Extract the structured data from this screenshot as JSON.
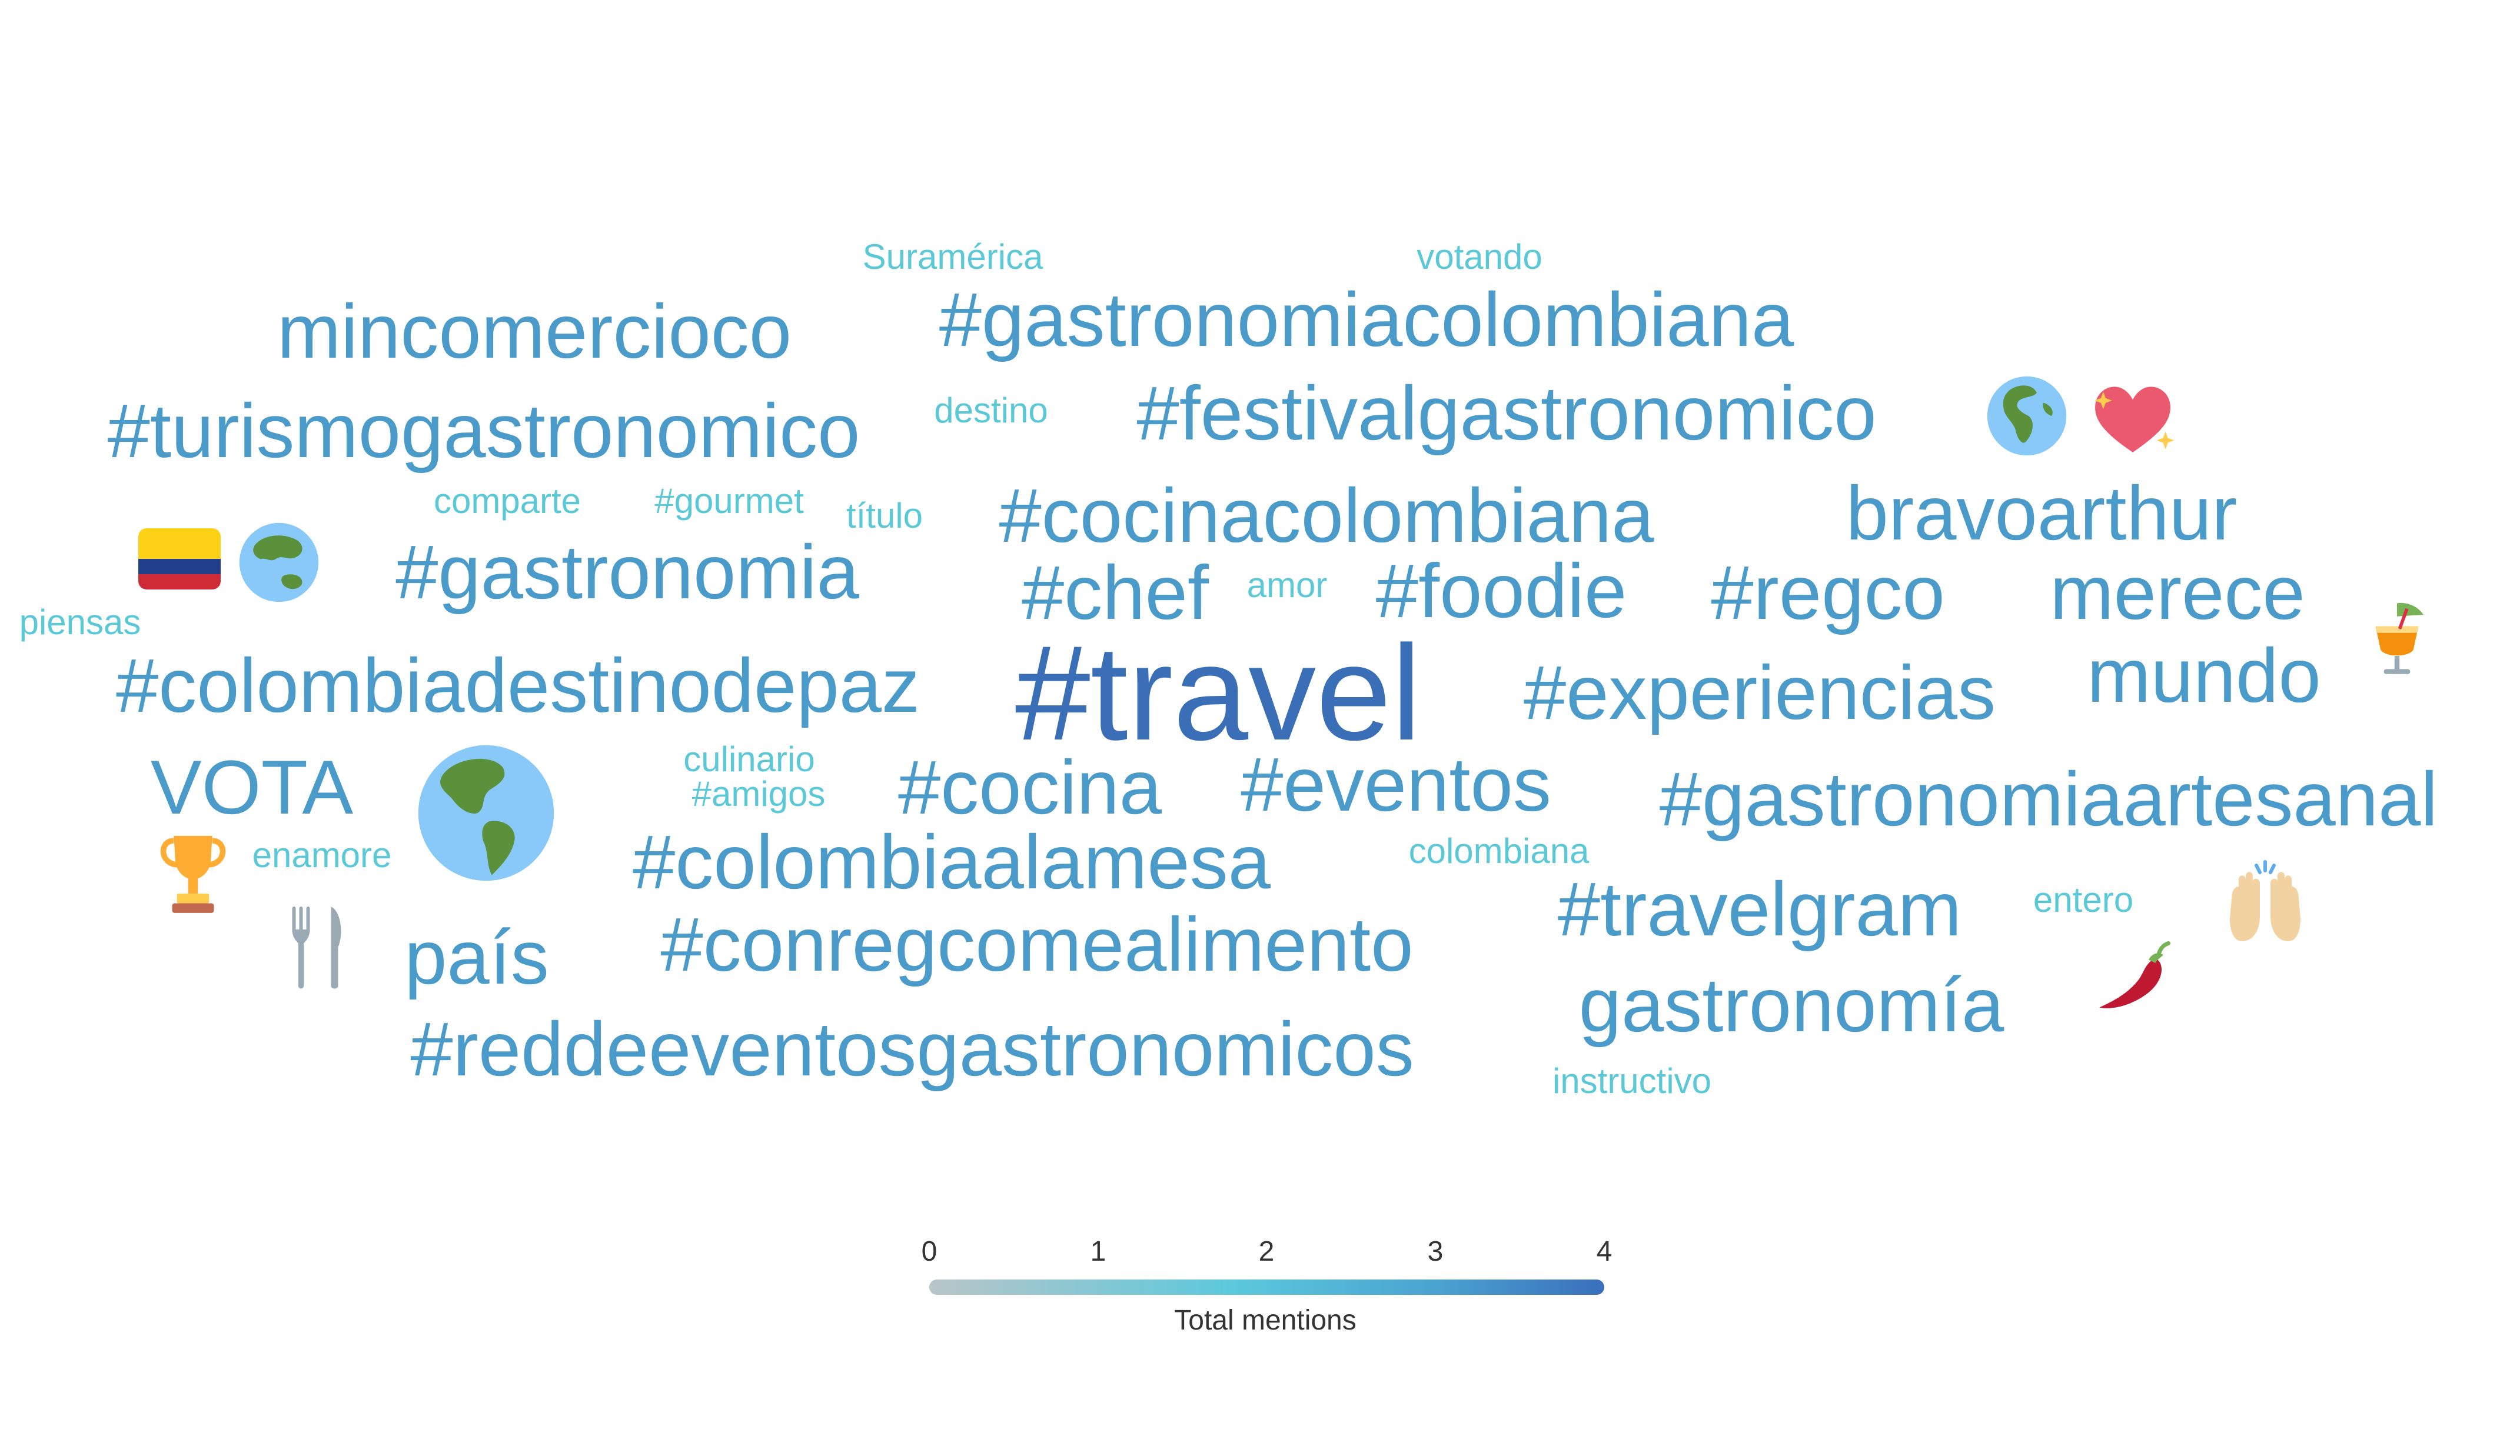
{
  "chart_data": {
    "type": "wordcloud",
    "words": [
      {
        "text": "#travel",
        "value": 4
      },
      {
        "text": "#gastronomiacolombiana",
        "value": 3
      },
      {
        "text": "mincomercioco",
        "value": 3
      },
      {
        "text": "#turismogastronomico",
        "value": 3
      },
      {
        "text": "#festivalgastronomico",
        "value": 3
      },
      {
        "text": "#cocinacolombiana",
        "value": 3
      },
      {
        "text": "bravoarthur",
        "value": 3
      },
      {
        "text": "#gastronomia",
        "value": 3
      },
      {
        "text": "#chef",
        "value": 3
      },
      {
        "text": "#foodie",
        "value": 3
      },
      {
        "text": "#regco",
        "value": 3
      },
      {
        "text": "merece",
        "value": 3
      },
      {
        "text": "#colombiadestinodepaz",
        "value": 3
      },
      {
        "text": "#experiencias",
        "value": 3
      },
      {
        "text": "mundo",
        "value": 3
      },
      {
        "text": "VOTA",
        "value": 3
      },
      {
        "text": "#cocina",
        "value": 3
      },
      {
        "text": "#eventos",
        "value": 3
      },
      {
        "text": "#gastronomiaartesanal",
        "value": 3
      },
      {
        "text": "#colombiaalamesa",
        "value": 3
      },
      {
        "text": "#travelgram",
        "value": 3
      },
      {
        "text": "país",
        "value": 3
      },
      {
        "text": "#conregcomealimento",
        "value": 3
      },
      {
        "text": "gastronomía",
        "value": 3
      },
      {
        "text": "#reddeeventosgastronomicos",
        "value": 3
      },
      {
        "text": "Suramérica",
        "value": 1
      },
      {
        "text": "votando",
        "value": 1
      },
      {
        "text": "destino",
        "value": 1
      },
      {
        "text": "comparte",
        "value": 1
      },
      {
        "text": "#gourmet",
        "value": 1
      },
      {
        "text": "título",
        "value": 1
      },
      {
        "text": "amor",
        "value": 1
      },
      {
        "text": "piensas",
        "value": 1
      },
      {
        "text": "culinario",
        "value": 1
      },
      {
        "text": "#amigos",
        "value": 1
      },
      {
        "text": "enamore",
        "value": 1
      },
      {
        "text": "colombiana",
        "value": 1
      },
      {
        "text": "entero",
        "value": 1
      },
      {
        "text": "instructivo",
        "value": 1
      }
    ],
    "emojis": [
      {
        "name": "globe-africa-europe-icon",
        "value": 3
      },
      {
        "name": "sparkling-heart-icon",
        "value": 3
      },
      {
        "name": "colombia-flag-icon",
        "value": 3
      },
      {
        "name": "globe-asia-australia-icon",
        "value": 3
      },
      {
        "name": "tropical-drink-icon",
        "value": 2
      },
      {
        "name": "globe-americas-icon",
        "value": 4
      },
      {
        "name": "trophy-icon",
        "value": 2
      },
      {
        "name": "fork-and-knife-icon",
        "value": 2
      },
      {
        "name": "raising-hands-icon",
        "value": 2
      },
      {
        "name": "hot-pepper-icon",
        "value": 2
      }
    ],
    "colorbar": {
      "title": "Total mentions",
      "ticks": [
        "0",
        "1",
        "2",
        "3",
        "4"
      ],
      "range": [
        0,
        4
      ],
      "colors": [
        "#b8c6c8",
        "#5bc8dc",
        "#4aa3d0",
        "#3a6fbc"
      ]
    }
  }
}
